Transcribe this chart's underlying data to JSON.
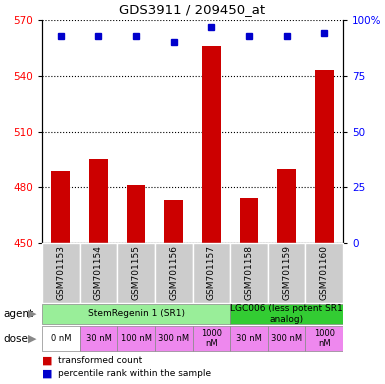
{
  "title": "GDS3911 / 209450_at",
  "samples": [
    "GSM701153",
    "GSM701154",
    "GSM701155",
    "GSM701156",
    "GSM701157",
    "GSM701158",
    "GSM701159",
    "GSM701160"
  ],
  "red_values": [
    489,
    495,
    481,
    473,
    556,
    474,
    490,
    543
  ],
  "blue_values": [
    93,
    93,
    93,
    90,
    97,
    93,
    93,
    94
  ],
  "ylim_left": [
    450,
    570
  ],
  "ylim_right": [
    0,
    100
  ],
  "yticks_left": [
    450,
    480,
    510,
    540,
    570
  ],
  "yticks_right": [
    0,
    25,
    50,
    75,
    100
  ],
  "ytick_labels_right": [
    "0",
    "25",
    "50",
    "75",
    "100%"
  ],
  "bar_color": "#cc0000",
  "dot_color": "#0000cc",
  "bar_base": 450,
  "agent_groups": [
    {
      "text": "StemRegenin 1 (SR1)",
      "start": 0,
      "end": 4,
      "color": "#99ee99"
    },
    {
      "text": "LGC006 (less potent SR1\nanalog)",
      "start": 5,
      "end": 7,
      "color": "#33cc33"
    }
  ],
  "doses": [
    "0 nM",
    "30 nM",
    "100 nM",
    "300 nM",
    "1000\nnM",
    "30 nM",
    "300 nM",
    "1000\nnM"
  ],
  "dose_color_white": [
    0
  ],
  "dose_color_pink": "#ee88ee",
  "dose_color_white_hex": "#ffffff",
  "legend": [
    {
      "color": "#cc0000",
      "label": "transformed count"
    },
    {
      "color": "#0000cc",
      "label": "percentile rank within the sample"
    }
  ],
  "sample_col_color": "#cccccc",
  "agent_label": "agent",
  "dose_label": "dose"
}
